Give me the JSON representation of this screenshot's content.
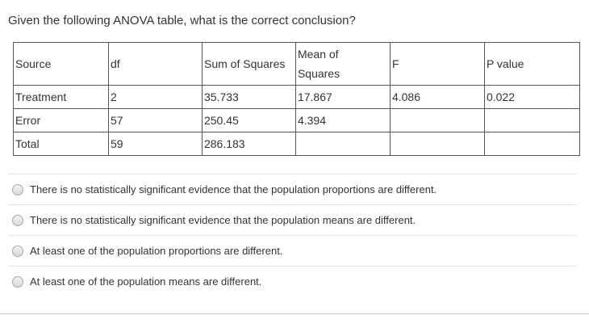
{
  "question": "Given the following ANOVA table, what is the correct conclusion?",
  "table": {
    "headers": {
      "source": "Source",
      "df": "df",
      "ss": "Sum of Squares",
      "ms_line1": "Mean of",
      "ms_line2": "Squares",
      "f": "F",
      "p": "P value"
    },
    "rows": [
      {
        "source": "Treatment",
        "df": "2",
        "ss": "35.733",
        "ms": "17.867",
        "f": "4.086",
        "p": "0.022"
      },
      {
        "source": "Error",
        "df": "57",
        "ss": "250.45",
        "ms": "4.394",
        "f": "",
        "p": ""
      },
      {
        "source": "Total",
        "df": "59",
        "ss": "286.183",
        "ms": "",
        "f": "",
        "p": ""
      }
    ]
  },
  "options": [
    "There is no statistically significant evidence that the population proportions are different.",
    "There is no statistically significant evidence that the population means are different.",
    "At least one of the population proportions are different.",
    "At least one of the population means are different."
  ]
}
